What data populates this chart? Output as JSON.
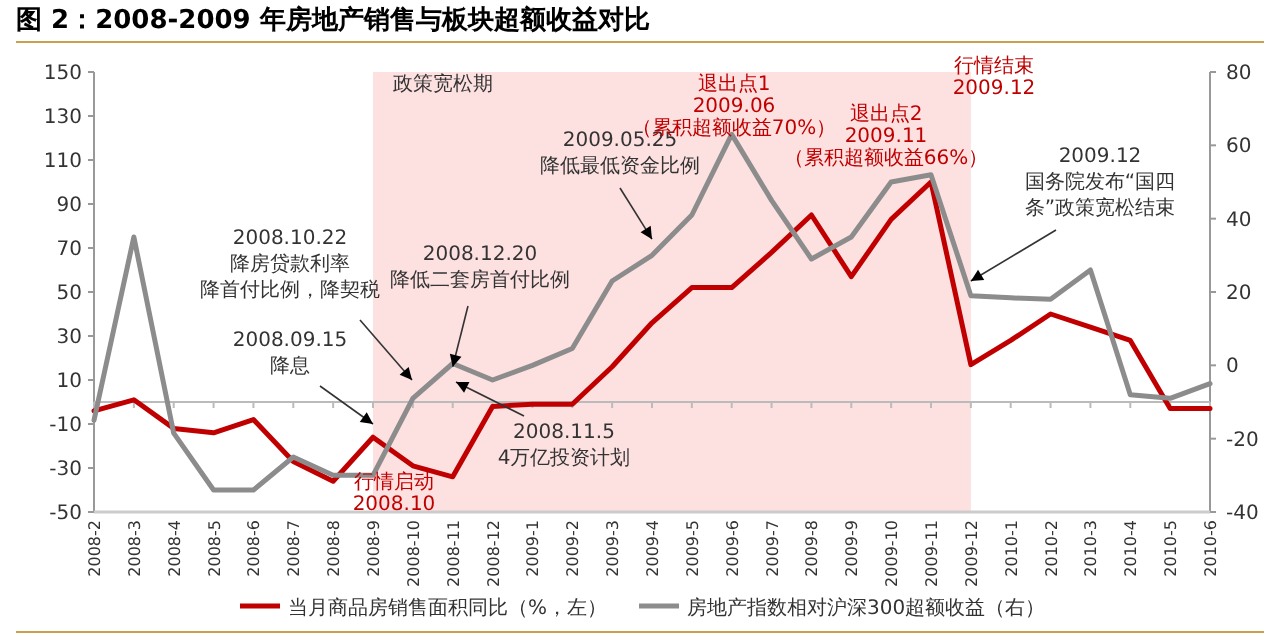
{
  "chart_data": {
    "type": "line",
    "title": "图 2：2008-2009 年房地产销售与板块超额收益对比",
    "categories": [
      "2008-2",
      "2008-3",
      "2008-4",
      "2008-5",
      "2008-6",
      "2008-7",
      "2008-8",
      "2008-9",
      "2008-10",
      "2008-11",
      "2008-12",
      "2009-1",
      "2009-2",
      "2009-3",
      "2009-4",
      "2009-5",
      "2009-6",
      "2009-7",
      "2009-8",
      "2009-9",
      "2009-10",
      "2009-11",
      "2009-12",
      "2010-1",
      "2010-2",
      "2010-3",
      "2010-4",
      "2010-5",
      "2010-6"
    ],
    "series": [
      {
        "name": "当月商品房销售面积同比（%，左）",
        "color": "#c00000",
        "values": [
          -4,
          1,
          -12,
          -14,
          -8,
          -27,
          -36,
          -16,
          -29,
          -34,
          -2,
          -1,
          -1,
          16,
          36,
          52,
          52,
          68,
          85,
          57,
          83,
          100,
          17,
          28,
          40,
          34,
          28,
          -3,
          -3
        ]
      },
      {
        "name": "房地产指数相对沪深300超额收益（右）",
        "color": "#8c8c8c",
        "axis": "y2",
        "values": [
          -15,
          35,
          -18.5,
          -34,
          -34,
          -25,
          -30,
          -30,
          -9,
          0.5,
          -4,
          0,
          4.6,
          23,
          30,
          41,
          63,
          45,
          29,
          35,
          50,
          52,
          19,
          18.4,
          18,
          26,
          -8,
          -9,
          -5
        ]
      }
    ],
    "ylim": [
      -50,
      150
    ],
    "yticks": [
      -50,
      -30,
      -10,
      10,
      30,
      50,
      70,
      90,
      110,
      130,
      150
    ],
    "y2lim": [
      -40,
      80
    ],
    "y2ticks": [
      -40,
      -20,
      0,
      20,
      40,
      60,
      80
    ],
    "bands": [
      {
        "axis": "x",
        "from": "2008-9",
        "to": "2009-12",
        "label": "政策宽松期",
        "color": "#fde0e0"
      }
    ],
    "annotations": [
      "2008.10.22\n降房贷款利率降首付比例，降契税",
      {
        "text": "2008.12.20\n降低二套房首付比例",
        "x": "2008-11",
        "y": 16
      },
      {
        "text": "2009.05.25\n降低最低资金比例",
        "x": "2009-4",
        "y": 74
      },
      {
        "text": "2008.09.15\n降息",
        "x": "2008-9",
        "y": -10
      },
      "2008.11.5\n4万亿投资计划",
      {
        "text": "2009.12\n国务院发布“国四条”政策宽松结束",
        "x": "2009-12",
        "y": 55
      },
      "行情启动\n2008.10",
      "退出点1\n2009.06\n（累积超额收益70%）",
      "退出点2\n2009.11\n（累积超额收益66%）",
      "行情结束\n2009.12"
    ],
    "legend": "bottom",
    "grid": false
  }
}
